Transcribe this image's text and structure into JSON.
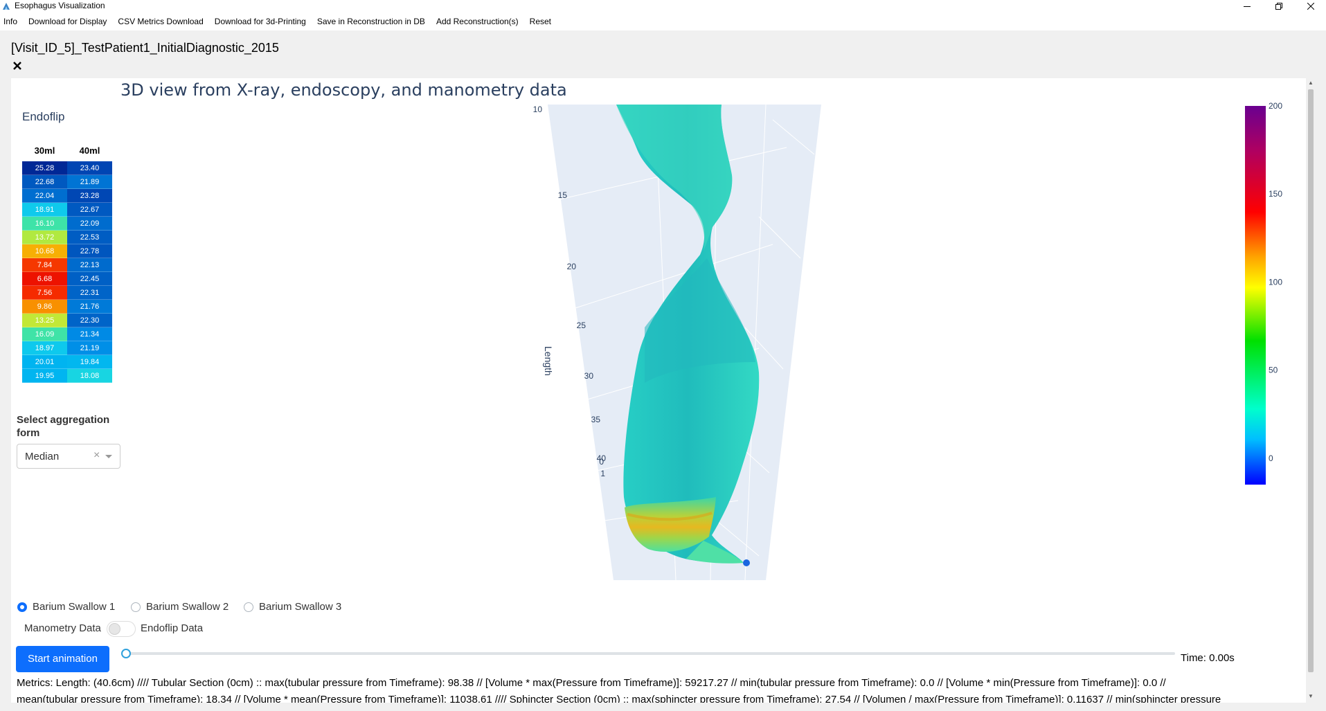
{
  "window": {
    "title": "Esophagus Visualization"
  },
  "menu": [
    "Info",
    "Download for Display",
    "CSV Metrics Download",
    "Download for 3d-Printing",
    "Save in Reconstruction in DB",
    "Add Reconstruction(s)",
    "Reset"
  ],
  "page": {
    "heading": "[Visit_ID_5]_TestPatient1_InitialDiagnostic_2015"
  },
  "plot": {
    "title": "3D view from X-ray, endoscopy, and manometry data"
  },
  "endoflip": {
    "title": "Endoflip",
    "columns": [
      "30ml",
      "40ml"
    ],
    "col30": [
      "25.28",
      "22.68",
      "22.04",
      "18.91",
      "16.10",
      "13.72",
      "10.68",
      "7.84",
      "6.68",
      "7.56",
      "9.86",
      "13.25",
      "16.09",
      "18.97",
      "20.01",
      "19.95"
    ],
    "col40": [
      "23.40",
      "21.89",
      "23.28",
      "22.67",
      "22.09",
      "22.53",
      "22.78",
      "22.13",
      "22.45",
      "22.31",
      "21.76",
      "22.30",
      "21.34",
      "21.19",
      "19.84",
      "18.08"
    ]
  },
  "aggregation": {
    "label": "Select aggregation form",
    "value": "Median"
  },
  "barium": {
    "options": [
      "Barium Swallow 1",
      "Barium Swallow 2",
      "Barium Swallow 3"
    ],
    "selected": "Barium Swallow 1"
  },
  "toggle": {
    "left_label": "Manometry Data",
    "right_label": "Endoflip Data",
    "state": "off"
  },
  "animation": {
    "button_label": "Start animation",
    "time_label": "Time: 0.00s",
    "progress": 0
  },
  "metrics": {
    "line1": "Metrics: Length: (40.6cm) //// Tubular Section (0cm) :: max(tubular pressure from Timeframe): 98.38 // [Volume * max(Pressure from Timeframe)]: 59217.27 // min(tubular pressure from Timeframe): 0.0 // [Volume * min(Pressure from Timeframe)]: 0.0 //",
    "line2": "mean(tubular pressure from Timeframe): 18.34 // [Volume * mean(Pressure from Timeframe)]: 11038.61 //// Sphincter Section (0cm) :: max(sphincter pressure from Timeframe): 27.54 // [Volumen / max(Pressure from Timeframe)]: 0.11637 // min(sphincter pressure"
  },
  "chart_data": {
    "type": "surface",
    "scene_axis_title": "Length",
    "length_ticks": [
      10,
      15,
      20,
      25,
      30,
      35,
      40
    ],
    "extra_ticks": [
      "0",
      "1"
    ],
    "colorbar": {
      "ticks": [
        0,
        50,
        100,
        150,
        200
      ],
      "range": [
        -15,
        200
      ],
      "colorscale": "rainbow (blue to purple)"
    },
    "colors": {
      "surface_main": "#2fd6c4",
      "surface_mid": "#27c6bd",
      "sphincter_band": "#e8c020",
      "tip": "#1a66e0",
      "axis_title": "#2a3f5f"
    }
  }
}
